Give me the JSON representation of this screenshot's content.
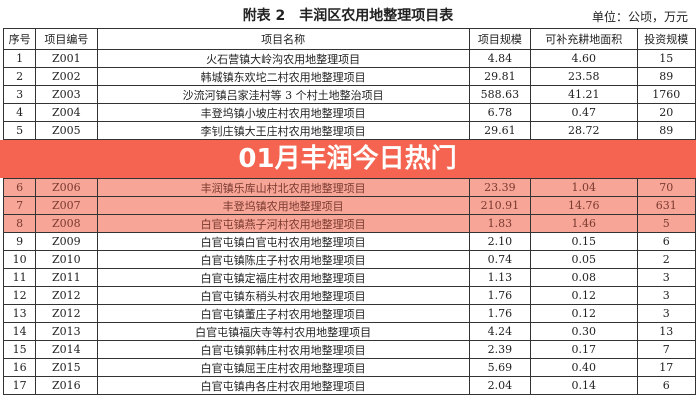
{
  "title": "附表 2　丰润区农用地整理项目表",
  "unit": "单位：公顷，万元",
  "headers": [
    "序号",
    "项目编号",
    "项目名称",
    "项目规模",
    "可补充耕地面积",
    "投资规模"
  ],
  "rows": [
    [
      "1",
      "Z001",
      "火石营镇大岭沟农用地整理项目",
      "4.84",
      "4.60",
      "15"
    ],
    [
      "2",
      "Z002",
      "韩城镇东欢坨二村农用地整理项目",
      "29.81",
      "23.58",
      "89"
    ],
    [
      "3",
      "Z003",
      "沙流河镇吕家洼村等 3 个村土地整治项目",
      "588.63",
      "41.21",
      "1760"
    ],
    [
      "4",
      "Z004",
      "丰登坞镇小坡庄村农用地整理项目",
      "6.78",
      "0.47",
      "20"
    ],
    [
      "5",
      "Z005",
      "李钊庄镇大王庄村农用地整理项目",
      "29.61",
      "28.72",
      "89"
    ],
    [
      "6",
      "Z006",
      "丰润镇乐库山村北农用地整理项目",
      "23.39",
      "1.04",
      "70"
    ],
    [
      "7",
      "Z007",
      "丰登坞镇农用地整理项目",
      "210.91",
      "14.76",
      "631"
    ],
    [
      "8",
      "Z008",
      "白官屯镇燕子河村农用地整理项目",
      "1.83",
      "1.46",
      "5"
    ],
    [
      "9",
      "Z009",
      "白官屯镇白官屯村农用地整理项目",
      "2.10",
      "0.15",
      "6"
    ],
    [
      "10",
      "Z010",
      "白官屯镇陈庄子村农用地整理项目",
      "0.74",
      "0.05",
      "2"
    ],
    [
      "11",
      "Z011",
      "白官屯镇定福庄村农用地整理项目",
      "1.13",
      "0.08",
      "3"
    ],
    [
      "12",
      "Z012",
      "白官屯镇东稍头村农用地整理项目",
      "1.76",
      "0.12",
      "3"
    ],
    [
      "13",
      "Z012",
      "白官屯镇董庄子村农用地整理项目",
      "1.76",
      "0.12",
      "3"
    ],
    [
      "14",
      "Z013",
      "白官屯镇福庆寺等村农用地整理项目",
      "4.24",
      "0.30",
      "13"
    ],
    [
      "15",
      "Z014",
      "白官屯镇郭韩庄村农用地整理项目",
      "2.39",
      "0.17",
      "7"
    ],
    [
      "16",
      "Z015",
      "白官屯镇屈王庄村农用地整理项目",
      "5.69",
      "0.40",
      "17"
    ],
    [
      "17",
      "Z016",
      "白官屯镇冉各庄村农用地整理项目",
      "2.04",
      "0.14",
      "6"
    ]
  ],
  "banner": {
    "text": "01月丰润今日热门",
    "color": "#f46450"
  }
}
